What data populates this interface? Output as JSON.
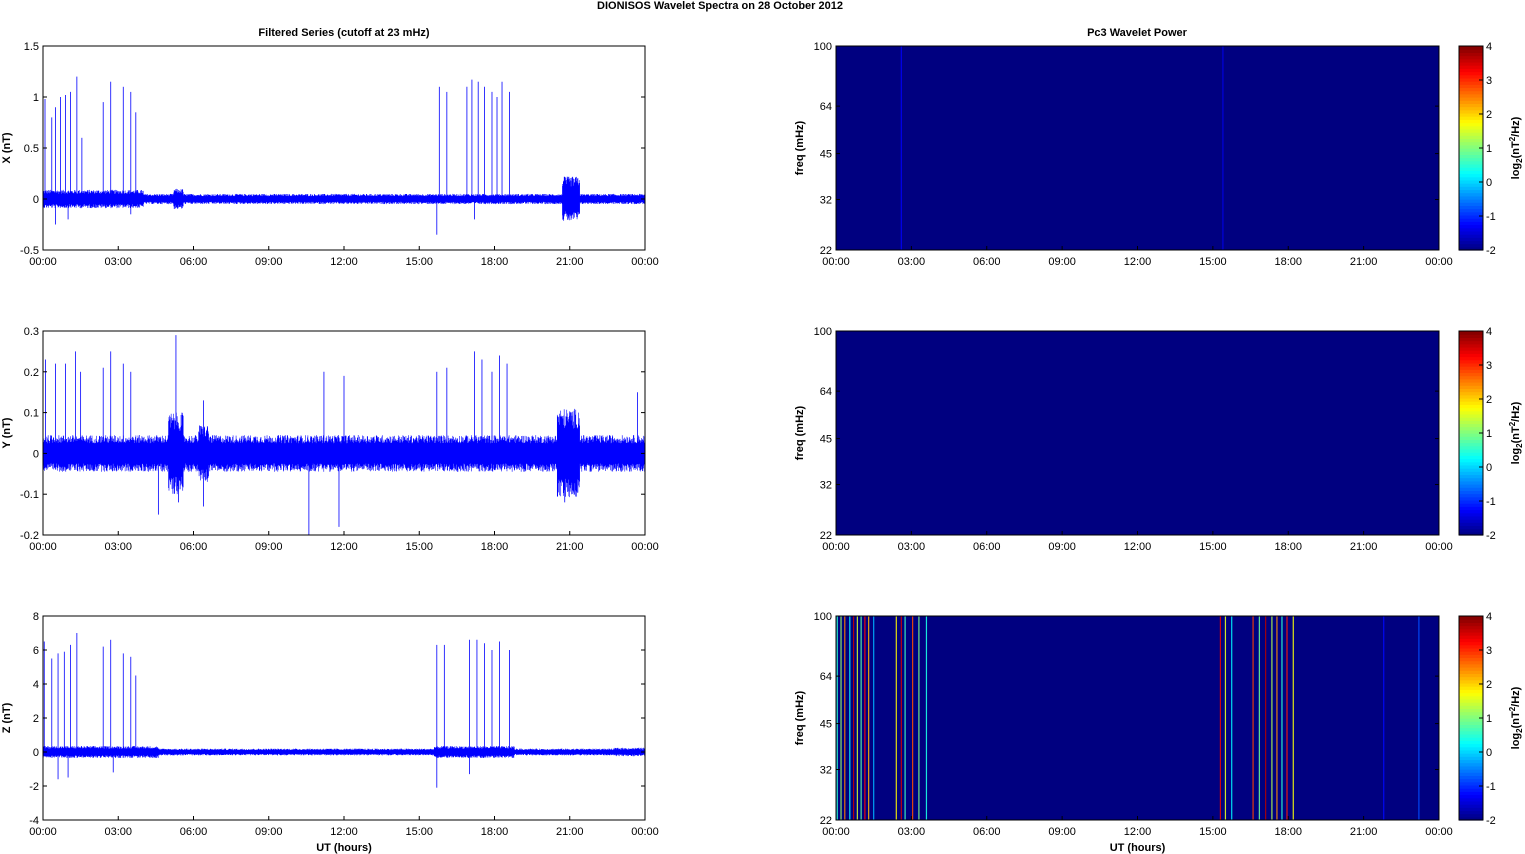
{
  "figure": {
    "title": "DIONISOS Wavelet Spectra on 28 October   2012",
    "left_column_title": "Filtered Series (cutoff at 23 mHz)",
    "right_column_title": "Pc3 Wavelet Power",
    "xlabel": "UT (hours)",
    "line_color": "#0000ff",
    "spectrogram_background": "#00008f"
  },
  "chart_data": [
    {
      "type": "line",
      "title": "Filtered Series (cutoff at 23 mHz)",
      "xlabel": "",
      "ylabel": "X (nT)",
      "x_ticks": [
        "00:00",
        "03:00",
        "06:00",
        "09:00",
        "12:00",
        "15:00",
        "18:00",
        "21:00",
        "00:00"
      ],
      "xlim_hours": [
        0,
        24
      ],
      "ylim": [
        -0.5,
        1.5
      ],
      "y_ticks": [
        "-0.5",
        "0",
        "0.5",
        "1",
        "1.5"
      ],
      "y_tick_values": [
        -0.5,
        0,
        0.5,
        1,
        1.5
      ],
      "baseline_noise_amplitude": 0.05,
      "series": [
        {
          "values": [],
          "spikes": [
            {
              "t": 0.08,
              "v": 0.98
            },
            {
              "t": 0.35,
              "v": 0.8
            },
            {
              "t": 0.5,
              "v": 0.9
            },
            {
              "t": 0.7,
              "v": 1.0
            },
            {
              "t": 0.9,
              "v": 1.02
            },
            {
              "t": 1.1,
              "v": 1.05
            },
            {
              "t": 1.35,
              "v": 1.2
            },
            {
              "t": 1.55,
              "v": 0.6
            },
            {
              "t": 2.4,
              "v": 0.95
            },
            {
              "t": 2.7,
              "v": 1.15
            },
            {
              "t": 3.2,
              "v": 1.1
            },
            {
              "t": 3.5,
              "v": 1.05
            },
            {
              "t": 3.7,
              "v": 0.85
            },
            {
              "t": 15.8,
              "v": 1.1
            },
            {
              "t": 16.1,
              "v": 1.05
            },
            {
              "t": 16.9,
              "v": 1.1
            },
            {
              "t": 17.1,
              "v": 1.17
            },
            {
              "t": 17.35,
              "v": 1.15
            },
            {
              "t": 17.6,
              "v": 1.1
            },
            {
              "t": 17.9,
              "v": 1.05
            },
            {
              "t": 18.1,
              "v": 1.0
            },
            {
              "t": 18.3,
              "v": 1.15
            },
            {
              "t": 18.6,
              "v": 1.05
            }
          ],
          "neg_spikes": [
            {
              "t": 0.5,
              "v": -0.25
            },
            {
              "t": 1.0,
              "v": -0.2
            },
            {
              "t": 15.7,
              "v": -0.35
            },
            {
              "t": 17.2,
              "v": -0.2
            },
            {
              "t": 3.5,
              "v": -0.15
            }
          ],
          "bursts": [
            {
              "t0": 20.7,
              "t1": 21.4,
              "amp": 0.22
            },
            {
              "t0": 5.2,
              "t1": 5.6,
              "amp": 0.1
            },
            {
              "t0": 0.0,
              "t1": 4.0,
              "amp": 0.09
            }
          ]
        }
      ]
    },
    {
      "type": "line",
      "title": "",
      "xlabel": "",
      "ylabel": "Y (nT)",
      "x_ticks": [
        "00:00",
        "03:00",
        "06:00",
        "09:00",
        "12:00",
        "15:00",
        "18:00",
        "21:00",
        "00:00"
      ],
      "xlim_hours": [
        0,
        24
      ],
      "ylim": [
        -0.2,
        0.3
      ],
      "y_ticks": [
        "-0.2",
        "-0.1",
        "0",
        "0.1",
        "0.2",
        "0.3"
      ],
      "y_tick_values": [
        -0.2,
        -0.1,
        0,
        0.1,
        0.2,
        0.3
      ],
      "baseline_noise_amplitude": 0.045,
      "series": [
        {
          "values": [],
          "spikes": [
            {
              "t": 0.1,
              "v": 0.23
            },
            {
              "t": 0.5,
              "v": 0.22
            },
            {
              "t": 0.9,
              "v": 0.22
            },
            {
              "t": 1.3,
              "v": 0.25
            },
            {
              "t": 1.5,
              "v": 0.2
            },
            {
              "t": 2.4,
              "v": 0.21
            },
            {
              "t": 2.7,
              "v": 0.25
            },
            {
              "t": 3.2,
              "v": 0.22
            },
            {
              "t": 3.5,
              "v": 0.2
            },
            {
              "t": 5.3,
              "v": 0.29
            },
            {
              "t": 6.4,
              "v": 0.13
            },
            {
              "t": 11.2,
              "v": 0.2
            },
            {
              "t": 12.0,
              "v": 0.19
            },
            {
              "t": 15.7,
              "v": 0.2
            },
            {
              "t": 16.1,
              "v": 0.21
            },
            {
              "t": 17.2,
              "v": 0.25
            },
            {
              "t": 17.5,
              "v": 0.23
            },
            {
              "t": 17.9,
              "v": 0.2
            },
            {
              "t": 18.2,
              "v": 0.24
            },
            {
              "t": 18.5,
              "v": 0.22
            },
            {
              "t": 23.7,
              "v": 0.15
            }
          ],
          "neg_spikes": [
            {
              "t": 4.6,
              "v": -0.15
            },
            {
              "t": 6.4,
              "v": -0.13
            },
            {
              "t": 10.6,
              "v": -0.2
            },
            {
              "t": 11.8,
              "v": -0.18
            },
            {
              "t": 5.4,
              "v": -0.12
            },
            {
              "t": 20.8,
              "v": -0.12
            }
          ],
          "bursts": [
            {
              "t0": 5.0,
              "t1": 5.6,
              "amp": 0.1
            },
            {
              "t0": 20.5,
              "t1": 21.4,
              "amp": 0.11
            },
            {
              "t0": 6.2,
              "t1": 6.6,
              "amp": 0.07
            }
          ]
        }
      ]
    },
    {
      "type": "line",
      "title": "",
      "xlabel": "UT (hours)",
      "ylabel": "Z (nT)",
      "x_ticks": [
        "00:00",
        "03:00",
        "06:00",
        "09:00",
        "12:00",
        "15:00",
        "18:00",
        "21:00",
        "00:00"
      ],
      "xlim_hours": [
        0,
        24
      ],
      "ylim": [
        -4,
        8
      ],
      "y_ticks": [
        "-4",
        "-2",
        "0",
        "2",
        "4",
        "6",
        "8"
      ],
      "y_tick_values": [
        -4,
        -2,
        0,
        2,
        4,
        6,
        8
      ],
      "baseline_noise_amplitude": 0.2,
      "series": [
        {
          "values": [],
          "spikes": [
            {
              "t": 0.05,
              "v": 6.5
            },
            {
              "t": 0.35,
              "v": 5.5
            },
            {
              "t": 0.6,
              "v": 5.8
            },
            {
              "t": 0.85,
              "v": 5.9
            },
            {
              "t": 1.1,
              "v": 6.3
            },
            {
              "t": 1.35,
              "v": 7.0
            },
            {
              "t": 2.4,
              "v": 6.2
            },
            {
              "t": 2.7,
              "v": 6.6
            },
            {
              "t": 3.2,
              "v": 5.8
            },
            {
              "t": 3.5,
              "v": 5.6
            },
            {
              "t": 3.7,
              "v": 4.5
            },
            {
              "t": 15.7,
              "v": 6.3
            },
            {
              "t": 16.0,
              "v": 6.3
            },
            {
              "t": 17.0,
              "v": 6.6
            },
            {
              "t": 17.3,
              "v": 6.6
            },
            {
              "t": 17.6,
              "v": 6.4
            },
            {
              "t": 17.9,
              "v": 6.0
            },
            {
              "t": 18.2,
              "v": 6.5
            },
            {
              "t": 18.6,
              "v": 6.0
            }
          ],
          "neg_spikes": [
            {
              "t": 0.6,
              "v": -1.6
            },
            {
              "t": 1.0,
              "v": -1.5
            },
            {
              "t": 15.7,
              "v": -2.1
            },
            {
              "t": 17.0,
              "v": -1.3
            },
            {
              "t": 2.8,
              "v": -1.2
            }
          ],
          "bursts": [
            {
              "t0": 0.0,
              "t1": 4.6,
              "amp": 0.35
            },
            {
              "t0": 15.6,
              "t1": 18.8,
              "amp": 0.35
            },
            {
              "t0": 22.8,
              "t1": 24.0,
              "amp": 0.25
            }
          ]
        }
      ]
    },
    {
      "type": "heatmap",
      "title": "Pc3 Wavelet Power",
      "xlabel": "",
      "ylabel": "freq (mHz)",
      "x_ticks": [
        "00:00",
        "03:00",
        "06:00",
        "09:00",
        "12:00",
        "15:00",
        "18:00",
        "21:00",
        "00:00"
      ],
      "y_ticks": [
        "22",
        "32",
        "45",
        "64",
        "100"
      ],
      "y_tick_values": [
        22,
        32,
        45,
        64,
        100
      ],
      "y_scale": "log",
      "ylim": [
        22,
        100
      ],
      "colorbar": {
        "label": "log",
        "label_sub": "2",
        "label_rest": "(nT",
        "label_sup": "2",
        "label_end": "/Hz)",
        "ticks": [
          "4",
          "3",
          "2",
          "1",
          "0",
          "-1",
          "-2"
        ],
        "range": [
          -2,
          4
        ],
        "colormap": "jet"
      },
      "background_value": -2,
      "streaks": [
        {
          "t": 2.6,
          "v": -1.3
        },
        {
          "t": 15.4,
          "v": -1.4
        }
      ]
    },
    {
      "type": "heatmap",
      "title": "",
      "xlabel": "",
      "ylabel": "freq (mHz)",
      "x_ticks": [
        "00:00",
        "03:00",
        "06:00",
        "09:00",
        "12:00",
        "15:00",
        "18:00",
        "21:00",
        "00:00"
      ],
      "y_ticks": [
        "22",
        "32",
        "45",
        "64",
        "100"
      ],
      "y_tick_values": [
        22,
        32,
        45,
        64,
        100
      ],
      "y_scale": "log",
      "ylim": [
        22,
        100
      ],
      "colorbar": {
        "label": "log",
        "label_sub": "2",
        "label_rest": "(nT",
        "label_sup": "2",
        "label_end": "/Hz)",
        "ticks": [
          "4",
          "3",
          "2",
          "1",
          "0",
          "-1",
          "-2"
        ],
        "range": [
          -2,
          4
        ],
        "colormap": "jet"
      },
      "background_value": -2,
      "streaks": []
    },
    {
      "type": "heatmap",
      "title": "",
      "xlabel": "UT (hours)",
      "ylabel": "freq (mHz)",
      "x_ticks": [
        "00:00",
        "03:00",
        "06:00",
        "09:00",
        "12:00",
        "15:00",
        "18:00",
        "21:00",
        "00:00"
      ],
      "y_ticks": [
        "22",
        "32",
        "45",
        "64",
        "100"
      ],
      "y_tick_values": [
        22,
        32,
        45,
        64,
        100
      ],
      "y_scale": "log",
      "ylim": [
        22,
        100
      ],
      "colorbar": {
        "label": "log",
        "label_sub": "2",
        "label_rest": "(nT",
        "label_sup": "2",
        "label_end": "/Hz)",
        "ticks": [
          "4",
          "3",
          "2",
          "1",
          "0",
          "-1",
          "-2"
        ],
        "range": [
          -2,
          4
        ],
        "colormap": "jet"
      },
      "background_value": -2,
      "streaks": [
        {
          "t": 0.05,
          "v": 0.5
        },
        {
          "t": 0.2,
          "v": 1.2
        },
        {
          "t": 0.35,
          "v": 2.5
        },
        {
          "t": 0.55,
          "v": 0.3
        },
        {
          "t": 0.7,
          "v": 3.6
        },
        {
          "t": 0.85,
          "v": 1.5
        },
        {
          "t": 1.0,
          "v": 0.8
        },
        {
          "t": 1.15,
          "v": 3.2
        },
        {
          "t": 1.3,
          "v": 2.2
        },
        {
          "t": 1.5,
          "v": -0.2
        },
        {
          "t": 2.4,
          "v": 1.8
        },
        {
          "t": 2.6,
          "v": 3.5
        },
        {
          "t": 2.75,
          "v": 0.6
        },
        {
          "t": 3.05,
          "v": 2.8
        },
        {
          "t": 3.3,
          "v": 1.0
        },
        {
          "t": 3.6,
          "v": 0.4
        },
        {
          "t": 15.3,
          "v": 3.4
        },
        {
          "t": 15.5,
          "v": 1.6
        },
        {
          "t": 15.75,
          "v": 0.2
        },
        {
          "t": 16.6,
          "v": 2.9
        },
        {
          "t": 16.85,
          "v": 0.9
        },
        {
          "t": 17.1,
          "v": 3.7
        },
        {
          "t": 17.35,
          "v": 1.3
        },
        {
          "t": 17.55,
          "v": 2.4
        },
        {
          "t": 17.75,
          "v": 0.5
        },
        {
          "t": 17.95,
          "v": 3.1
        },
        {
          "t": 18.2,
          "v": 1.7
        },
        {
          "t": 21.8,
          "v": -1.2
        },
        {
          "t": 23.2,
          "v": -0.8
        }
      ]
    }
  ]
}
